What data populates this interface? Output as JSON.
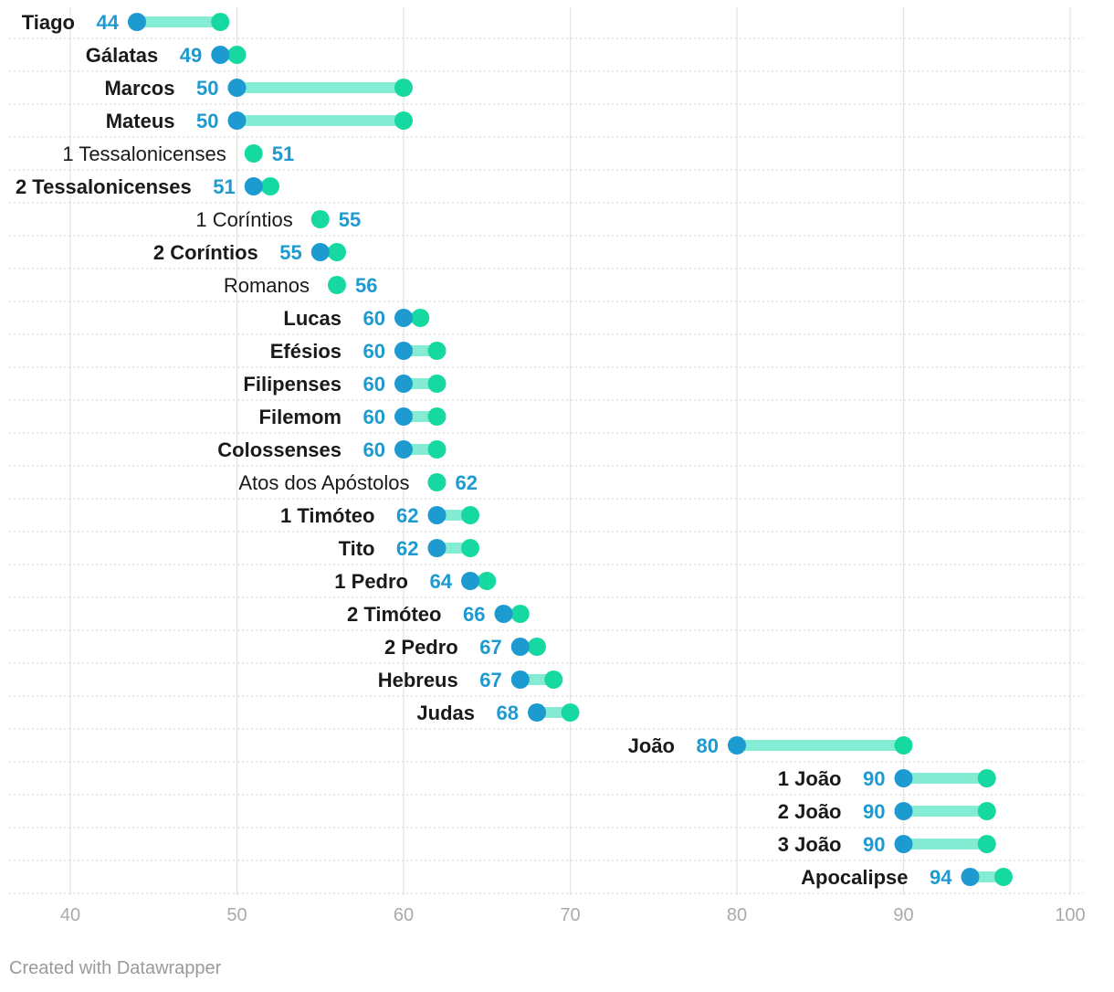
{
  "chart_data": {
    "type": "range-dot",
    "xlim": [
      40,
      100
    ],
    "x_ticks": [
      40,
      50,
      60,
      70,
      80,
      90,
      100
    ],
    "colors": {
      "start": "#1d9bd1",
      "end": "#16d9a2",
      "bar": "#84ecd2",
      "value_label": "#1d9bd1"
    },
    "rows": [
      {
        "label": "Tiago",
        "start": 44,
        "end": 49,
        "start_label": "44"
      },
      {
        "label": "Gálatas",
        "start": 49,
        "end": 50,
        "start_label": "49"
      },
      {
        "label": "Marcos",
        "start": 50,
        "end": 60,
        "start_label": "50"
      },
      {
        "label": "Mateus",
        "start": 50,
        "end": 60,
        "start_label": "50"
      },
      {
        "label": "1 Tessalonicenses",
        "start": 51,
        "end": 51,
        "start_label": "51"
      },
      {
        "label": "2 Tessalonicenses",
        "start": 51,
        "end": 52,
        "start_label": "51"
      },
      {
        "label": "1 Coríntios",
        "start": 55,
        "end": 55,
        "start_label": "55"
      },
      {
        "label": "2 Coríntios",
        "start": 55,
        "end": 56,
        "start_label": "55"
      },
      {
        "label": "Romanos",
        "start": 56,
        "end": 56,
        "start_label": "56"
      },
      {
        "label": "Lucas",
        "start": 60,
        "end": 61,
        "start_label": "60"
      },
      {
        "label": "Efésios",
        "start": 60,
        "end": 62,
        "start_label": "60"
      },
      {
        "label": "Filipenses",
        "start": 60,
        "end": 62,
        "start_label": "60"
      },
      {
        "label": "Filemom",
        "start": 60,
        "end": 62,
        "start_label": "60"
      },
      {
        "label": "Colossenses",
        "start": 60,
        "end": 62,
        "start_label": "60"
      },
      {
        "label": "Atos dos Apóstolos",
        "start": 62,
        "end": 62,
        "start_label": "62"
      },
      {
        "label": "1 Timóteo",
        "start": 62,
        "end": 64,
        "start_label": "62"
      },
      {
        "label": "Tito",
        "start": 62,
        "end": 64,
        "start_label": "62"
      },
      {
        "label": "1 Pedro",
        "start": 64,
        "end": 65,
        "start_label": "64"
      },
      {
        "label": "2 Timóteo",
        "start": 66,
        "end": 67,
        "start_label": "66"
      },
      {
        "label": "2 Pedro",
        "start": 67,
        "end": 68,
        "start_label": "67"
      },
      {
        "label": "Hebreus",
        "start": 67,
        "end": 69,
        "start_label": "67"
      },
      {
        "label": "Judas",
        "start": 68,
        "end": 70,
        "start_label": "68"
      },
      {
        "label": "João",
        "start": 80,
        "end": 90,
        "start_label": "80"
      },
      {
        "label": "1 João",
        "start": 90,
        "end": 95,
        "start_label": "90"
      },
      {
        "label": "2 João",
        "start": 90,
        "end": 95,
        "start_label": "90"
      },
      {
        "label": "3 João",
        "start": 90,
        "end": 95,
        "start_label": "90"
      },
      {
        "label": "Apocalipse",
        "start": 94,
        "end": 96,
        "start_label": "94"
      }
    ]
  },
  "footer": {
    "credit": "Created with Datawrapper"
  }
}
